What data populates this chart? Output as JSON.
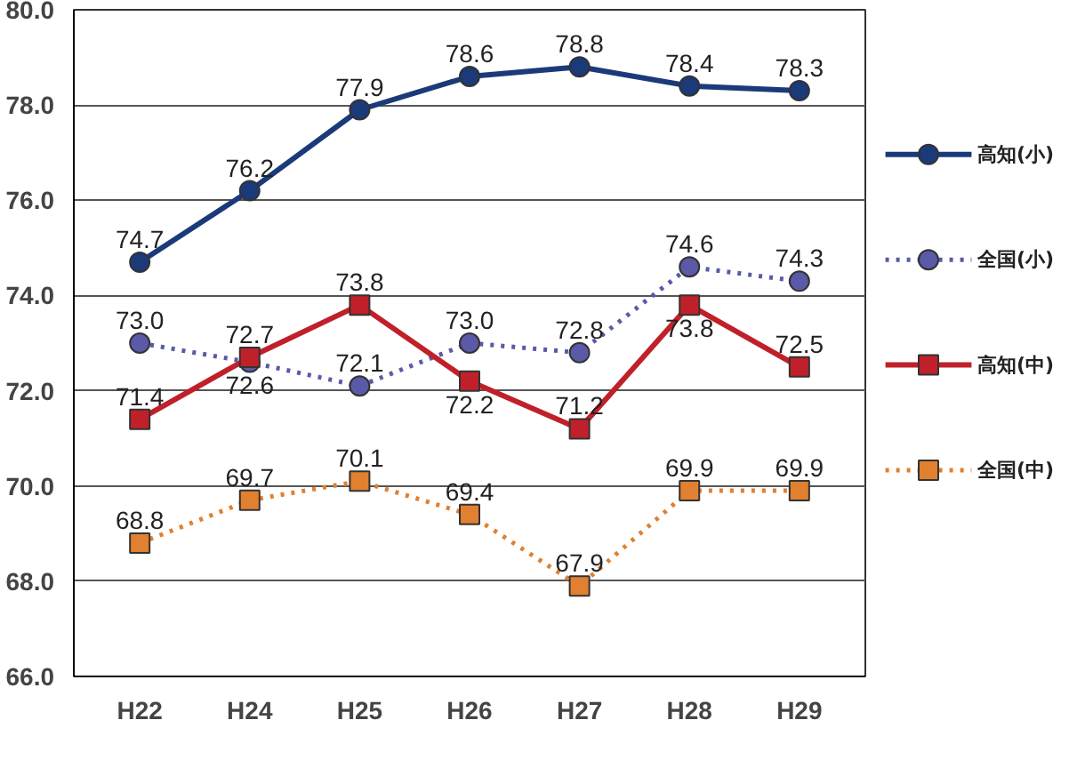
{
  "chart_data": {
    "type": "line",
    "categories": [
      "H22",
      "H24",
      "H25",
      "H26",
      "H27",
      "H28",
      "H29"
    ],
    "series": [
      {
        "name": "高知(小)",
        "color": "#1a3a7a",
        "marker": "circle",
        "line_style": "solid",
        "values": [
          74.7,
          76.2,
          77.9,
          78.6,
          78.8,
          78.4,
          78.3
        ],
        "value_labels": [
          "74.7",
          "76.2",
          "77.9",
          "78.6",
          "78.8",
          "78.4",
          "78.3"
        ]
      },
      {
        "name": "全国(小)",
        "color": "#5a5aa8",
        "marker": "circle",
        "line_style": "dotted",
        "values": [
          73.0,
          72.6,
          72.1,
          73.0,
          72.8,
          74.6,
          74.3
        ],
        "value_labels": [
          "73.0",
          "72.6",
          "72.1",
          "73.0",
          "72.8",
          "74.6",
          "74.3"
        ]
      },
      {
        "name": "高知(中)",
        "color": "#c0202a",
        "marker": "square",
        "line_style": "solid",
        "values": [
          71.4,
          72.7,
          73.8,
          72.2,
          71.2,
          73.8,
          72.5
        ],
        "value_labels": [
          "71.4",
          "72.7",
          "73.8",
          "72.2",
          "71.2",
          "73.8",
          "72.5"
        ]
      },
      {
        "name": "全国(中)",
        "color": "#e08030",
        "marker": "square",
        "line_style": "dotted",
        "values": [
          68.8,
          69.7,
          70.1,
          69.4,
          67.9,
          69.9,
          69.9
        ],
        "value_labels": [
          "68.8",
          "69.7",
          "70.1",
          "69.4",
          "67.9",
          "69.9",
          "69.9"
        ]
      }
    ],
    "ylim": [
      66,
      80
    ],
    "yticks": [
      {
        "value": 66,
        "label": "66.0"
      },
      {
        "value": 68,
        "label": "68.0"
      },
      {
        "value": 70,
        "label": "70.0"
      },
      {
        "value": 72,
        "label": "72.0"
      },
      {
        "value": 74,
        "label": "74.0"
      },
      {
        "value": 76,
        "label": "76.0"
      },
      {
        "value": 78,
        "label": "78.0"
      },
      {
        "value": 80,
        "label": "80.0"
      }
    ],
    "grid": "y",
    "legend": "right"
  }
}
